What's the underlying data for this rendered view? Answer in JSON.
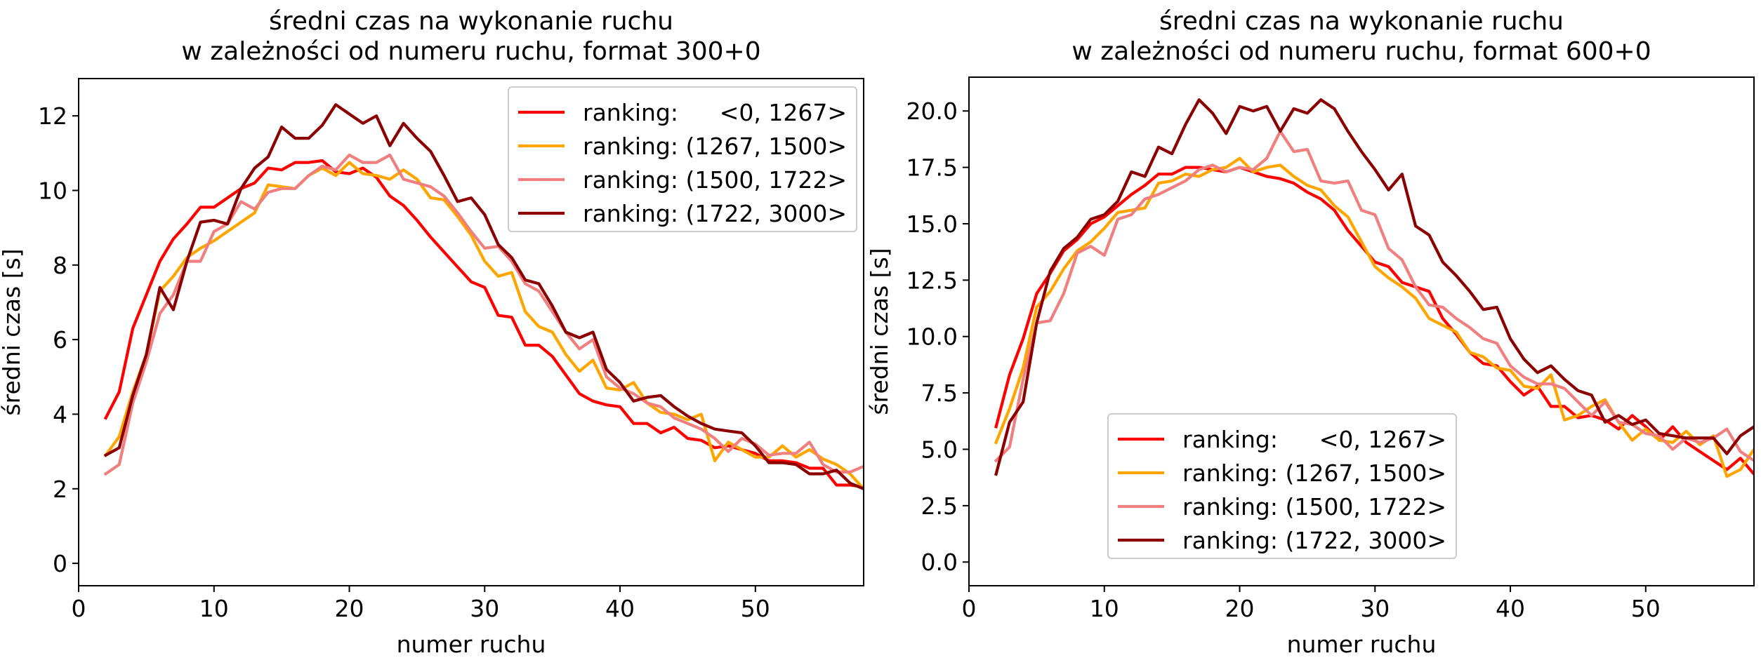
{
  "chart_data": [
    {
      "type": "line",
      "title": [
        "średni czas na wykonanie ruchu",
        "w zależności od numeru ruchu, format 300+0"
      ],
      "xlabel": "numer ruchu",
      "ylabel": "średni czas [s]",
      "xlim": [
        0,
        58
      ],
      "ylim": [
        -0.6,
        13
      ],
      "xticks": [
        0,
        10,
        20,
        30,
        40,
        50
      ],
      "xtick_labels": [
        "0",
        "10",
        "20",
        "30",
        "40",
        "50"
      ],
      "yticks": [
        0,
        2,
        4,
        6,
        8,
        10,
        12
      ],
      "ytick_labels": [
        "0",
        "2",
        "4",
        "6",
        "8",
        "10",
        "12"
      ],
      "grid": false,
      "legend_position": "upper right",
      "series": [
        {
          "name": "ranking:      <0, 1267>",
          "color": "#ff0000",
          "x": [
            2,
            3,
            4,
            5,
            6,
            7,
            8,
            9,
            10,
            11,
            12,
            13,
            14,
            15,
            16,
            17,
            18,
            19,
            20,
            21,
            22,
            23,
            24,
            25,
            26,
            27,
            28,
            29,
            30,
            31,
            32,
            33,
            34,
            35,
            36,
            37,
            38,
            39,
            40,
            41,
            42,
            43,
            44,
            45,
            46,
            47,
            48,
            49,
            50,
            51,
            52,
            53,
            54,
            55,
            56,
            57,
            58
          ],
          "y": [
            3.9,
            4.6,
            6.3,
            7.2,
            8.1,
            8.7,
            9.1,
            9.55,
            9.55,
            9.8,
            10.05,
            10.2,
            10.6,
            10.55,
            10.75,
            10.75,
            10.8,
            10.5,
            10.45,
            10.6,
            10.35,
            9.85,
            9.6,
            9.2,
            8.75,
            8.35,
            7.95,
            7.55,
            7.4,
            6.65,
            6.6,
            5.85,
            5.85,
            5.55,
            5.05,
            4.55,
            4.35,
            4.25,
            4.2,
            3.75,
            3.75,
            3.5,
            3.65,
            3.35,
            3.3,
            3.1,
            3.15,
            3.05,
            2.95,
            2.75,
            2.75,
            2.7,
            2.55,
            2.55,
            2.1,
            2.1,
            2.05
          ]
        },
        {
          "name": "ranking: (1267, 1500>",
          "color": "#ffa500",
          "x": [
            2,
            3,
            4,
            5,
            6,
            7,
            8,
            9,
            10,
            11,
            12,
            13,
            14,
            15,
            16,
            17,
            18,
            19,
            20,
            21,
            22,
            23,
            24,
            25,
            26,
            27,
            28,
            29,
            30,
            31,
            32,
            33,
            34,
            35,
            36,
            37,
            38,
            39,
            40,
            41,
            42,
            43,
            44,
            45,
            46,
            47,
            48,
            49,
            50,
            51,
            52,
            53,
            54,
            55,
            56,
            57,
            58
          ],
          "y": [
            2.9,
            3.4,
            4.6,
            5.6,
            7.3,
            7.7,
            8.2,
            8.45,
            8.65,
            8.9,
            9.15,
            9.4,
            10.15,
            10.1,
            10.05,
            10.4,
            10.6,
            10.4,
            10.75,
            10.45,
            10.4,
            10.3,
            10.55,
            10.3,
            9.8,
            9.75,
            9.3,
            8.8,
            8.1,
            7.7,
            7.8,
            6.75,
            6.35,
            6.2,
            5.6,
            5.15,
            5.45,
            4.7,
            4.65,
            4.85,
            4.3,
            4.05,
            4.0,
            3.85,
            4.0,
            2.75,
            3.25,
            3.05,
            2.85,
            2.85,
            3.15,
            2.85,
            3.05,
            2.8,
            2.65,
            2.4,
            2.0
          ]
        },
        {
          "name": "ranking: (1500, 1722>",
          "color": "#f08080",
          "x": [
            2,
            3,
            4,
            5,
            6,
            7,
            8,
            9,
            10,
            11,
            12,
            13,
            14,
            15,
            16,
            17,
            18,
            19,
            20,
            21,
            22,
            23,
            24,
            25,
            26,
            27,
            28,
            29,
            30,
            31,
            32,
            33,
            34,
            35,
            36,
            37,
            38,
            39,
            40,
            41,
            42,
            43,
            44,
            45,
            46,
            47,
            48,
            49,
            50,
            51,
            52,
            53,
            54,
            55,
            56,
            57,
            58
          ],
          "y": [
            2.4,
            2.65,
            4.3,
            5.4,
            6.7,
            7.2,
            8.1,
            8.1,
            8.9,
            9.1,
            9.7,
            9.5,
            9.95,
            10.05,
            10.05,
            10.4,
            10.65,
            10.55,
            10.95,
            10.75,
            10.75,
            10.95,
            10.3,
            10.2,
            10.1,
            9.85,
            9.4,
            8.9,
            8.45,
            8.5,
            8.1,
            7.5,
            7.3,
            6.75,
            6.2,
            5.75,
            6.0,
            5.0,
            4.7,
            4.55,
            4.3,
            4.2,
            3.9,
            3.75,
            3.6,
            3.35,
            3.0,
            3.35,
            3.2,
            2.9,
            2.95,
            2.95,
            3.25,
            2.65,
            2.45,
            2.45,
            2.6
          ]
        },
        {
          "name": "ranking: (1722, 3000>",
          "color": "#8b0000",
          "x": [
            2,
            3,
            4,
            5,
            6,
            7,
            8,
            9,
            10,
            11,
            12,
            13,
            14,
            15,
            16,
            17,
            18,
            19,
            20,
            21,
            22,
            23,
            24,
            25,
            26,
            27,
            28,
            29,
            30,
            31,
            32,
            33,
            34,
            35,
            36,
            37,
            38,
            39,
            40,
            41,
            42,
            43,
            44,
            45,
            46,
            47,
            48,
            49,
            50,
            51,
            52,
            53,
            54,
            55,
            56,
            57,
            58
          ],
          "y": [
            2.9,
            3.1,
            4.5,
            5.6,
            7.4,
            6.8,
            8.1,
            9.15,
            9.2,
            9.1,
            10.05,
            10.6,
            10.9,
            11.7,
            11.4,
            11.4,
            11.75,
            12.3,
            12.05,
            11.8,
            12.0,
            11.2,
            11.8,
            11.4,
            11.05,
            10.4,
            9.7,
            9.8,
            9.35,
            8.55,
            8.2,
            7.6,
            7.5,
            6.9,
            6.2,
            6.05,
            6.2,
            5.2,
            4.85,
            4.35,
            4.45,
            4.5,
            4.2,
            3.95,
            3.75,
            3.6,
            3.55,
            3.5,
            3.15,
            2.7,
            2.7,
            2.65,
            2.4,
            2.4,
            2.5,
            2.15,
            2.0
          ]
        }
      ]
    },
    {
      "type": "line",
      "title": [
        "średni czas na wykonanie ruchu",
        "w zależności od numeru ruchu, format 600+0"
      ],
      "xlabel": "numer ruchu",
      "ylabel": "średni czas [s]",
      "xlim": [
        0,
        58
      ],
      "ylim": [
        -1.05,
        21.5
      ],
      "xticks": [
        0,
        10,
        20,
        30,
        40,
        50
      ],
      "xtick_labels": [
        "0",
        "10",
        "20",
        "30",
        "40",
        "50"
      ],
      "yticks": [
        0,
        2.5,
        5,
        7.5,
        10,
        12.5,
        15,
        17.5,
        20
      ],
      "ytick_labels": [
        "0.0",
        "2.5",
        "5.0",
        "7.5",
        "10.0",
        "12.5",
        "15.0",
        "17.5",
        "20.0"
      ],
      "grid": false,
      "legend_position": "lower left",
      "series": [
        {
          "name": "ranking:      <0, 1267>",
          "color": "#ff0000",
          "x": [
            2,
            3,
            4,
            5,
            6,
            7,
            8,
            9,
            10,
            11,
            12,
            13,
            14,
            15,
            16,
            17,
            18,
            19,
            20,
            21,
            22,
            23,
            24,
            25,
            26,
            27,
            28,
            29,
            30,
            31,
            32,
            33,
            34,
            35,
            36,
            37,
            38,
            39,
            40,
            41,
            42,
            43,
            44,
            45,
            46,
            47,
            48,
            49,
            50,
            51,
            52,
            53,
            54,
            55,
            56,
            57,
            58
          ],
          "y": [
            6.0,
            8.3,
            9.9,
            11.9,
            12.8,
            13.8,
            14.3,
            15.0,
            15.3,
            15.8,
            16.3,
            16.7,
            17.2,
            17.2,
            17.5,
            17.5,
            17.4,
            17.3,
            17.5,
            17.3,
            17.1,
            17.0,
            16.8,
            16.4,
            16.1,
            15.6,
            14.7,
            14.0,
            13.3,
            13.1,
            12.4,
            12.2,
            12.0,
            10.8,
            10.1,
            9.3,
            8.8,
            8.7,
            8.0,
            7.4,
            7.8,
            6.9,
            6.9,
            6.4,
            6.5,
            6.3,
            5.9,
            6.5,
            6.0,
            5.4,
            6.0,
            5.3,
            4.9,
            4.5,
            4.1,
            4.6,
            3.9
          ]
        },
        {
          "name": "ranking: (1267, 1500>",
          "color": "#ffa500",
          "x": [
            2,
            3,
            4,
            5,
            6,
            7,
            8,
            9,
            10,
            11,
            12,
            13,
            14,
            15,
            16,
            17,
            18,
            19,
            20,
            21,
            22,
            23,
            24,
            25,
            26,
            27,
            28,
            29,
            30,
            31,
            32,
            33,
            34,
            35,
            36,
            37,
            38,
            39,
            40,
            41,
            42,
            43,
            44,
            45,
            46,
            47,
            48,
            49,
            50,
            51,
            52,
            53,
            54,
            55,
            56,
            57,
            58
          ],
          "y": [
            5.3,
            6.8,
            8.6,
            11.3,
            12.0,
            13.0,
            13.8,
            14.2,
            14.8,
            15.5,
            15.6,
            15.7,
            16.8,
            16.9,
            17.2,
            17.1,
            17.4,
            17.5,
            17.9,
            17.3,
            17.5,
            17.6,
            17.1,
            16.7,
            16.5,
            15.8,
            15.3,
            14.2,
            13.1,
            12.6,
            12.2,
            11.7,
            10.8,
            10.5,
            10.2,
            9.3,
            9.1,
            8.6,
            8.5,
            7.8,
            7.7,
            8.3,
            6.3,
            6.5,
            6.9,
            7.2,
            6.2,
            5.4,
            5.9,
            5.4,
            5.3,
            5.8,
            5.2,
            5.6,
            3.8,
            4.1,
            5.0
          ]
        },
        {
          "name": "ranking: (1500, 1722>",
          "color": "#f08080",
          "x": [
            2,
            3,
            4,
            5,
            6,
            7,
            8,
            9,
            10,
            11,
            12,
            13,
            14,
            15,
            16,
            17,
            18,
            19,
            20,
            21,
            22,
            23,
            24,
            25,
            26,
            27,
            28,
            29,
            30,
            31,
            32,
            33,
            34,
            35,
            36,
            37,
            38,
            39,
            40,
            41,
            42,
            43,
            44,
            45,
            46,
            47,
            48,
            49,
            50,
            51,
            52,
            53,
            54,
            55,
            56,
            57,
            58
          ],
          "y": [
            4.5,
            5.1,
            8.1,
            10.6,
            10.7,
            11.9,
            13.7,
            14.0,
            13.6,
            15.2,
            15.4,
            16.1,
            16.3,
            16.6,
            16.9,
            17.4,
            17.6,
            17.3,
            17.5,
            17.4,
            17.9,
            19.1,
            18.2,
            18.3,
            16.9,
            16.8,
            16.9,
            15.6,
            15.4,
            13.9,
            13.4,
            12.2,
            11.4,
            11.3,
            10.8,
            10.4,
            9.9,
            9.7,
            8.7,
            8.2,
            7.9,
            7.9,
            7.7,
            7.1,
            6.5,
            7.1,
            6.2,
            6.1,
            5.7,
            5.6,
            5.0,
            5.5,
            5.3,
            5.5,
            5.9,
            4.9,
            4.5
          ]
        },
        {
          "name": "ranking: (1722, 3000>",
          "color": "#8b0000",
          "x": [
            2,
            3,
            4,
            5,
            6,
            7,
            8,
            9,
            10,
            11,
            12,
            13,
            14,
            15,
            16,
            17,
            18,
            19,
            20,
            21,
            22,
            23,
            24,
            25,
            26,
            27,
            28,
            29,
            30,
            31,
            32,
            33,
            34,
            35,
            36,
            37,
            38,
            39,
            40,
            41,
            42,
            43,
            44,
            45,
            46,
            47,
            48,
            49,
            50,
            51,
            52,
            53,
            54,
            55,
            56,
            57,
            58
          ],
          "y": [
            3.9,
            6.2,
            7.1,
            10.6,
            12.9,
            13.9,
            14.4,
            15.2,
            15.4,
            16.0,
            17.3,
            17.1,
            18.4,
            18.1,
            19.4,
            20.5,
            19.9,
            19.0,
            20.2,
            20.0,
            20.2,
            19.1,
            20.1,
            19.9,
            20.5,
            20.1,
            19.1,
            18.2,
            17.4,
            16.5,
            17.2,
            14.9,
            14.5,
            13.3,
            12.7,
            12.0,
            11.2,
            11.3,
            9.9,
            9.0,
            8.4,
            8.7,
            8.1,
            7.6,
            7.4,
            6.2,
            6.5,
            6.1,
            6.3,
            5.7,
            5.6,
            5.5,
            5.5,
            5.5,
            4.8,
            5.6,
            6.0
          ]
        }
      ]
    }
  ]
}
